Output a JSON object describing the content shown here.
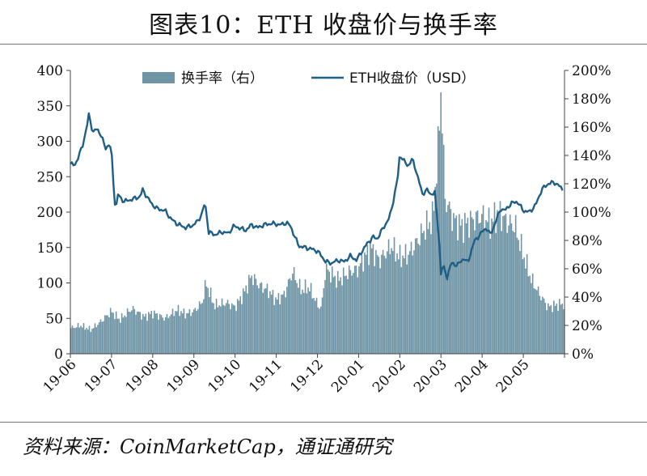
{
  "title": "图表10：ETH 收盘价与换手率",
  "source": "资料来源：CoinMarketCap，通证通研究",
  "colors": {
    "bar": "#6e94a5",
    "line": "#1f5f86",
    "axis": "#444444"
  },
  "chart_data": {
    "type": "bar+line",
    "x_categories": [
      "19-06",
      "19-07",
      "19-08",
      "19-09",
      "19-10",
      "19-11",
      "19-12",
      "20-01",
      "20-02",
      "20-03",
      "20-04",
      "20-05"
    ],
    "left_axis": {
      "ticks": [
        "0",
        "50",
        "100",
        "150",
        "200",
        "250",
        "300",
        "350",
        "400"
      ],
      "ylim": [
        0,
        400
      ]
    },
    "right_axis": {
      "ticks": [
        "0%",
        "20%",
        "40%",
        "60%",
        "80%",
        "100%",
        "120%",
        "140%",
        "160%",
        "180%",
        "200%"
      ],
      "ylim": [
        0,
        200
      ]
    },
    "legend_position": "top",
    "series": [
      {
        "name": "换手率（右）",
        "kind": "bar",
        "axis": "right",
        "unit": "%",
        "points": [
          [
            0,
            18
          ],
          [
            0.25,
            20
          ],
          [
            0.5,
            17
          ],
          [
            0.75,
            23
          ],
          [
            1,
            30
          ],
          [
            1.2,
            24
          ],
          [
            1.5,
            32
          ],
          [
            1.8,
            26
          ],
          [
            2,
            29
          ],
          [
            2.3,
            25
          ],
          [
            2.6,
            31
          ],
          [
            2.8,
            28
          ],
          [
            3,
            30
          ],
          [
            3.2,
            36
          ],
          [
            3.3,
            50
          ],
          [
            3.5,
            34
          ],
          [
            3.8,
            36
          ],
          [
            4,
            33
          ],
          [
            4.2,
            42
          ],
          [
            4.4,
            55
          ],
          [
            4.6,
            48
          ],
          [
            4.8,
            45
          ],
          [
            5,
            38
          ],
          [
            5.2,
            42
          ],
          [
            5.4,
            58
          ],
          [
            5.6,
            45
          ],
          [
            5.8,
            47
          ],
          [
            6,
            35
          ],
          [
            6.1,
            32
          ],
          [
            6.2,
            60
          ],
          [
            6.5,
            52
          ],
          [
            6.8,
            58
          ],
          [
            7,
            60
          ],
          [
            7.1,
            66
          ],
          [
            7.3,
            75
          ],
          [
            7.5,
            66
          ],
          [
            7.8,
            76
          ],
          [
            8,
            68
          ],
          [
            8.2,
            70
          ],
          [
            8.4,
            78
          ],
          [
            8.6,
            88
          ],
          [
            8.8,
            95
          ],
          [
            8.95,
            150
          ],
          [
            9.0,
            190
          ],
          [
            9.1,
            110
          ],
          [
            9.3,
            95
          ],
          [
            9.5,
            90
          ],
          [
            9.8,
            95
          ],
          [
            10,
            97
          ],
          [
            10.2,
            92
          ],
          [
            10.4,
            100
          ],
          [
            10.6,
            93
          ],
          [
            10.8,
            90
          ],
          [
            11.0,
            70
          ],
          [
            11.2,
            52
          ],
          [
            11.4,
            42
          ],
          [
            11.6,
            33
          ],
          [
            11.9,
            35
          ]
        ]
      },
      {
        "name": "ETH收盘价（USD）",
        "kind": "line",
        "axis": "left",
        "unit": "USD",
        "points": [
          [
            0,
            268
          ],
          [
            0.1,
            266
          ],
          [
            0.2,
            278
          ],
          [
            0.3,
            295
          ],
          [
            0.4,
            320
          ],
          [
            0.45,
            338
          ],
          [
            0.55,
            312
          ],
          [
            0.65,
            318
          ],
          [
            0.75,
            308
          ],
          [
            0.85,
            290
          ],
          [
            0.95,
            296
          ],
          [
            1.0,
            285
          ],
          [
            1.05,
            238
          ],
          [
            1.1,
            200
          ],
          [
            1.15,
            225
          ],
          [
            1.3,
            215
          ],
          [
            1.5,
            218
          ],
          [
            1.7,
            222
          ],
          [
            1.75,
            232
          ],
          [
            1.9,
            218
          ],
          [
            2.0,
            210
          ],
          [
            2.1,
            205
          ],
          [
            2.3,
            202
          ],
          [
            2.45,
            190
          ],
          [
            2.6,
            183
          ],
          [
            2.8,
            178
          ],
          [
            3.0,
            182
          ],
          [
            3.1,
            188
          ],
          [
            3.2,
            198
          ],
          [
            3.25,
            210
          ],
          [
            3.3,
            205
          ],
          [
            3.35,
            172
          ],
          [
            3.5,
            168
          ],
          [
            3.7,
            172
          ],
          [
            3.85,
            170
          ],
          [
            3.95,
            180
          ],
          [
            4.1,
            178
          ],
          [
            4.25,
            174
          ],
          [
            4.4,
            182
          ],
          [
            4.55,
            178
          ],
          [
            4.7,
            182
          ],
          [
            4.9,
            184
          ],
          [
            5.1,
            182
          ],
          [
            5.25,
            185
          ],
          [
            5.35,
            180
          ],
          [
            5.45,
            165
          ],
          [
            5.55,
            152
          ],
          [
            5.7,
            150
          ],
          [
            5.85,
            148
          ],
          [
            6.0,
            145
          ],
          [
            6.1,
            138
          ],
          [
            6.2,
            130
          ],
          [
            6.35,
            128
          ],
          [
            6.5,
            132
          ],
          [
            6.65,
            130
          ],
          [
            6.8,
            138
          ],
          [
            6.95,
            132
          ],
          [
            7.05,
            142
          ],
          [
            7.2,
            155
          ],
          [
            7.35,
            165
          ],
          [
            7.45,
            162
          ],
          [
            7.6,
            178
          ],
          [
            7.75,
            192
          ],
          [
            7.85,
            218
          ],
          [
            7.95,
            248
          ],
          [
            8.0,
            282
          ],
          [
            8.1,
            272
          ],
          [
            8.2,
            265
          ],
          [
            8.3,
            275
          ],
          [
            8.4,
            258
          ],
          [
            8.55,
            225
          ],
          [
            8.65,
            232
          ],
          [
            8.75,
            225
          ],
          [
            8.85,
            228
          ],
          [
            8.9,
            195
          ],
          [
            8.95,
            168
          ],
          [
            9.0,
            112
          ],
          [
            9.05,
            125
          ],
          [
            9.15,
            108
          ],
          [
            9.25,
            128
          ],
          [
            9.4,
            125
          ],
          [
            9.55,
            135
          ],
          [
            9.65,
            128
          ],
          [
            9.8,
            158
          ],
          [
            10.0,
            172
          ],
          [
            10.1,
            178
          ],
          [
            10.2,
            168
          ],
          [
            10.3,
            182
          ],
          [
            10.45,
            205
          ],
          [
            10.55,
            202
          ],
          [
            10.7,
            212
          ],
          [
            10.85,
            215
          ],
          [
            11.0,
            202
          ],
          [
            11.15,
            200
          ],
          [
            11.3,
            210
          ],
          [
            11.45,
            232
          ],
          [
            11.6,
            240
          ],
          [
            11.75,
            242
          ],
          [
            11.85,
            238
          ],
          [
            11.95,
            232
          ]
        ]
      }
    ]
  }
}
